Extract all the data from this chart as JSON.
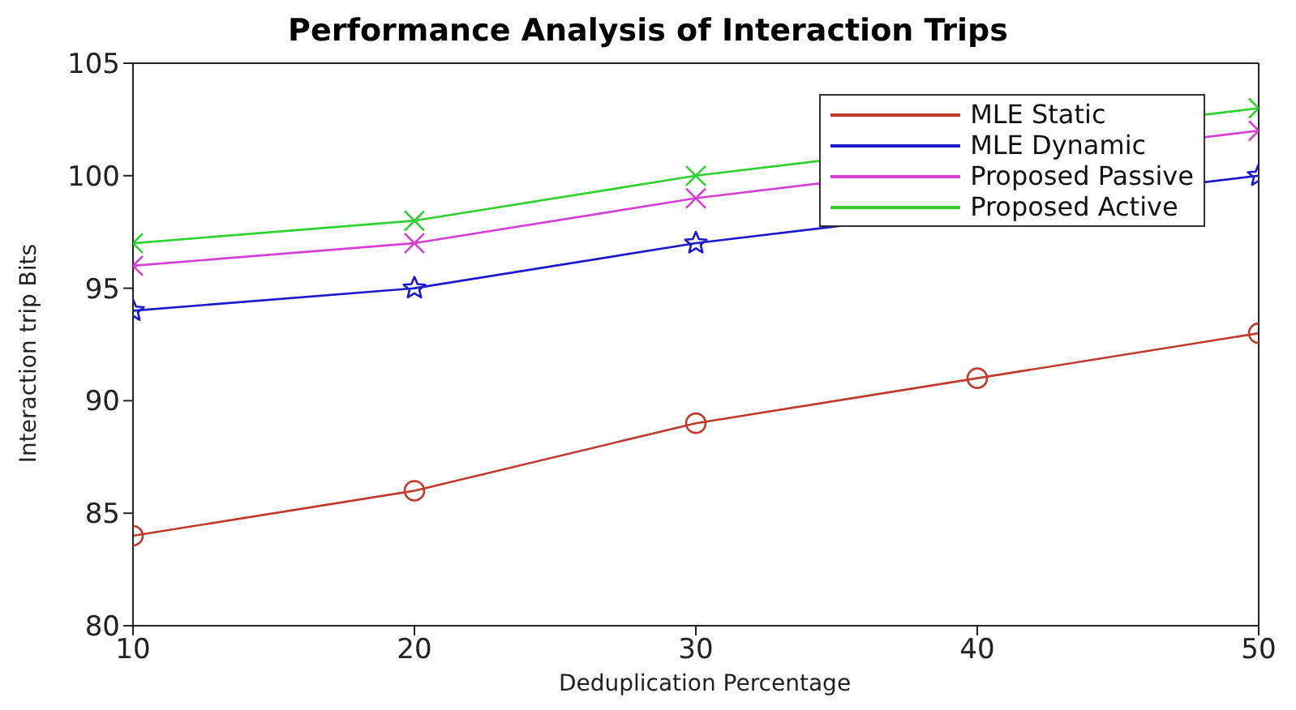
{
  "chart_data": {
    "type": "line",
    "title": "Performance Analysis of Interaction Trips",
    "xlabel": "Deduplication Percentage",
    "ylabel": "Interaction trip Bits",
    "x": [
      10,
      20,
      30,
      40,
      50
    ],
    "series": [
      {
        "name": "MLE Static",
        "color": "#c0392b",
        "marker": "circle",
        "values": [
          84,
          86,
          89,
          91,
          93
        ]
      },
      {
        "name": "MLE Dynamic",
        "color": "#1a1acc",
        "marker": "star",
        "values": [
          94,
          95,
          97,
          null,
          100
        ]
      },
      {
        "name": "Proposed Passive",
        "color": "#d63fd6",
        "marker": "cross",
        "values": [
          96,
          97,
          99,
          null,
          102
        ]
      },
      {
        "name": "Proposed Active",
        "color": "#2ed12e",
        "marker": "cross",
        "values": [
          97,
          98,
          100,
          null,
          103
        ]
      }
    ],
    "xlim": [
      10,
      50
    ],
    "xticks": [
      10,
      20,
      30,
      40,
      50
    ],
    "ylim": [
      80,
      105
    ],
    "yticks": [
      80,
      85,
      90,
      95,
      100,
      105
    ],
    "grid": false,
    "legend": "top right",
    "line_style": "solid"
  }
}
